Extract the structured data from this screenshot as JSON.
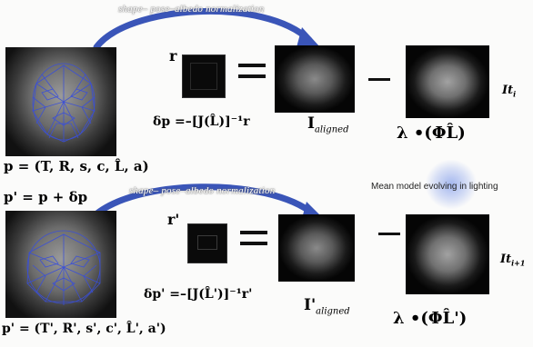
{
  "top_row": {
    "banner": "shape– pose–albedo  normalization",
    "r_label": "r",
    "delta_p_eq": "δp =–[J(L̂)]⁻¹r",
    "i_aligned": "I",
    "i_aligned_sub": "aligned",
    "lambda_expr": "λ •(ΦL̂)",
    "it_label": "It",
    "it_sub": "i",
    "params": "p = (T, R, s, c, L̂, a)"
  },
  "bottom_row": {
    "update_eq": "p' = p + δp",
    "banner": "shape– pose–albedo  normalization",
    "r_label": "r'",
    "delta_p_eq": "δp' =–[J(L̂')]⁻¹r'",
    "i_aligned": "I'",
    "i_aligned_sub": "aligned",
    "lambda_expr": "λ •(ΦL̂')",
    "it_label": "It",
    "it_sub": "i+1",
    "params": "p' = (T', R', s', c', L̂', a')"
  },
  "caption": "Mean model evolving in lighting",
  "colors": {
    "arrow": "#3a55b8",
    "mesh": "#3a4fd8",
    "glow": "#9fb3ee"
  }
}
